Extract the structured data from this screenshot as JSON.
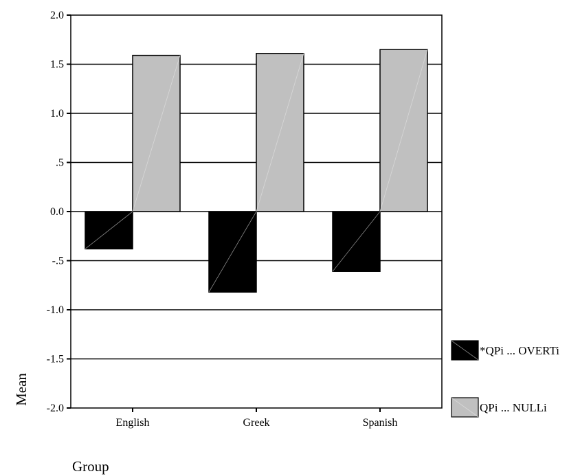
{
  "chart_data": {
    "type": "bar",
    "categories": [
      "English",
      "Greek",
      "Spanish"
    ],
    "series": [
      {
        "name": "*QPi ... OVERTi",
        "values": [
          -0.38,
          -0.82,
          -0.61
        ],
        "color": "#000000"
      },
      {
        "name": "QPi ... NULLi",
        "values": [
          1.59,
          1.61,
          1.65
        ],
        "color": "#c0c0c0"
      }
    ],
    "title": "",
    "xlabel": "Group",
    "ylabel": "Mean",
    "ylim": [
      -2.0,
      2.0
    ],
    "yticks": [
      -2.0,
      -1.5,
      -1.0,
      -0.5,
      0.0,
      0.5,
      1.0,
      1.5,
      2.0
    ],
    "ytick_labels": [
      "-2.0",
      "-1.5",
      "-1.0",
      "-.5",
      "0.0",
      ".5",
      "1.0",
      "1.5",
      "2.0"
    ],
    "grid": "horizontal",
    "legend_position": "right"
  }
}
